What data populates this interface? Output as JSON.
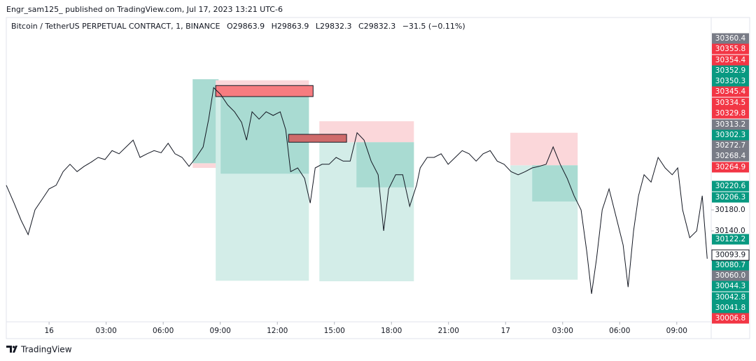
{
  "header": "Engr_sam125_ published on TradingView.com, Jul 17, 2023 13:21 UTC-6",
  "footer": "TradingView",
  "chart_data": {
    "type": "line",
    "title": "Bitcoin / TetherUS PERPETUAL CONTRACT, 1, BINANCE",
    "ohlc": [
      "O29863.9",
      "H29863.9",
      "L29832.3",
      "C29832.3",
      "−31.5 (−0.11%)"
    ],
    "color": "#131722",
    "x": [
      -2.25,
      -1.84,
      -1.47,
      -1.1,
      -0.74,
      -0.37,
      0,
      0.37,
      0.74,
      1.1,
      1.47,
      1.84,
      2.21,
      2.58,
      2.94,
      3.31,
      3.68,
      4.05,
      4.42,
      4.78,
      5.15,
      5.52,
      5.89,
      6.26,
      6.62,
      6.99,
      7.36,
      7.73,
      8.1,
      8.39,
      8.65,
      9.02,
      9.39,
      9.75,
      10.12,
      10.38,
      10.67,
      11.04,
      11.41,
      11.78,
      12.15,
      12.44,
      12.7,
      13.07,
      13.43,
      13.73,
      13.99,
      14.35,
      14.72,
      15.09,
      15.46,
      15.83,
      16.19,
      16.56,
      16.93,
      17.3,
      17.59,
      17.85,
      18.22,
      18.59,
      18.96,
      19.32,
      19.51,
      19.88,
      20.24,
      20.61,
      20.98,
      21.35,
      21.72,
      22.08,
      22.45,
      22.82,
      23.19,
      23.56,
      23.92,
      24.29,
      24.66,
      25.03,
      25.4,
      25.76,
      26.13,
      26.5,
      26.87,
      27.24,
      27.6,
      27.97,
      28.27,
      28.52,
      28.78,
      29.08,
      29.44,
      29.81,
      30.18,
      30.44,
      30.73,
      30.99,
      31.28,
      31.65,
      32.02,
      32.39,
      32.76,
      33.05,
      33.31,
      33.68,
      34.05,
      34.34,
      34.6
    ],
    "values": [
      30227,
      30193,
      30160,
      30133,
      30180,
      30200,
      30220,
      30227,
      30253,
      30267,
      30253,
      30263,
      30271,
      30280,
      30276,
      30293,
      30287,
      30300,
      30313,
      30280,
      30287,
      30293,
      30289,
      30307,
      30287,
      30280,
      30263,
      30280,
      30300,
      30353,
      30413,
      30400,
      30380,
      30367,
      30347,
      30313,
      30367,
      30353,
      30367,
      30360,
      30367,
      30333,
      30253,
      30260,
      30240,
      30193,
      30260,
      30267,
      30267,
      30280,
      30273,
      30273,
      30327,
      30313,
      30273,
      30247,
      30140,
      30220,
      30247,
      30247,
      30187,
      30227,
      30260,
      30280,
      30280,
      30287,
      30267,
      30280,
      30293,
      30287,
      30273,
      30287,
      30293,
      30273,
      30267,
      30253,
      30247,
      30253,
      30260,
      30263,
      30267,
      30300,
      30267,
      30240,
      30207,
      30180,
      30100,
      30020,
      30087,
      30180,
      30220,
      30167,
      30113,
      30033,
      30140,
      30207,
      30247,
      30233,
      30280,
      30260,
      30247,
      30260,
      30180,
      30127,
      30140,
      30207,
      30087
    ],
    "xlim": [
      -2.25,
      34.81
    ],
    "xticks": [
      {
        "value": 0,
        "label": "16"
      },
      {
        "value": 3,
        "label": "03:00"
      },
      {
        "value": 6,
        "label": "06:00"
      },
      {
        "value": 9,
        "label": "09:00"
      },
      {
        "value": 12,
        "label": "12:00"
      },
      {
        "value": 15,
        "label": "15:00"
      },
      {
        "value": 18,
        "label": "18:00"
      },
      {
        "value": 21,
        "label": "21:00"
      },
      {
        "value": 24,
        "label": "17"
      },
      {
        "value": 27,
        "label": "03:00"
      },
      {
        "value": 30,
        "label": "06:00"
      },
      {
        "value": 33,
        "label": "09:00"
      }
    ],
    "ylim": [
      29966.7,
      30546.7
    ],
    "yticks": [
      {
        "value": 30180,
        "label": "30180.0"
      },
      {
        "value": 30140,
        "label": "30140.0"
      }
    ],
    "last_price": {
      "value": 30093.9,
      "label": "30093.9"
    },
    "price_labels": [
      {
        "value": 30360.4,
        "label": "30360.4",
        "color": "#787b86"
      },
      {
        "value": 30355.8,
        "label": "30355.8",
        "color": "#f23645"
      },
      {
        "value": 30354.4,
        "label": "30354.4",
        "color": "#f23645"
      },
      {
        "value": 30352.9,
        "label": "30352.9",
        "color": "#089981"
      },
      {
        "value": 30350.3,
        "label": "30350.3",
        "color": "#089981"
      },
      {
        "value": 30345.4,
        "label": "30345.4",
        "color": "#f23645"
      },
      {
        "value": 30334.5,
        "label": "30334.5",
        "color": "#f23645"
      },
      {
        "value": 30329.8,
        "label": "30329.8",
        "color": "#f23645"
      },
      {
        "value": 30313.2,
        "label": "30313.2",
        "color": "#787b86"
      },
      {
        "value": 30302.3,
        "label": "30302.3",
        "color": "#089981"
      },
      {
        "value": 30272.7,
        "label": "30272.7",
        "color": "#787b86"
      },
      {
        "value": 30268.4,
        "label": "30268.4",
        "color": "#787b86"
      },
      {
        "value": 30264.9,
        "label": "30264.9",
        "color": "#f23645"
      },
      {
        "value": 30220.6,
        "label": "30220.6",
        "color": "#089981"
      },
      {
        "value": 30206.3,
        "label": "30206.3",
        "color": "#089981"
      },
      {
        "value": 30122.2,
        "label": "30122.2",
        "color": "#089981"
      },
      {
        "value": 30080.7,
        "label": "30080.7",
        "color": "#089981"
      },
      {
        "value": 30060.0,
        "label": "30060.0",
        "color": "#787b86"
      },
      {
        "value": 30044.3,
        "label": "30044.3",
        "color": "#089981"
      },
      {
        "value": 30042.8,
        "label": "30042.8",
        "color": "#089981"
      },
      {
        "value": 30041.8,
        "label": "30041.8",
        "color": "#089981"
      },
      {
        "value": 30006.8,
        "label": "30006.8",
        "color": "#f23645"
      }
    ],
    "positions": [
      {
        "start": 7.55,
        "end": 8.91,
        "entry": 30269,
        "stop": 30260,
        "target": 30429,
        "reached_from": 7.55,
        "reached": 30429
      },
      {
        "start": 8.76,
        "end": 13.66,
        "entry": 30397,
        "stop": 30427,
        "target": 30045,
        "reached_from": 9.02,
        "reached": 30249
      },
      {
        "start": 14.21,
        "end": 19.18,
        "entry": 30309,
        "stop": 30349,
        "target": 30044,
        "reached_from": 16.16,
        "reached": 30223
      },
      {
        "start": 24.25,
        "end": 27.79,
        "entry": 30265,
        "stop": 30327,
        "target": 30047,
        "reached_from": 25.4,
        "reached": 30196
      }
    ],
    "rectangles": [
      {
        "start": 8.76,
        "end": 13.88,
        "top": 30417,
        "bottom": 30396,
        "color": "#f77c80"
      },
      {
        "start": 12.59,
        "end": 15.64,
        "top": 30324,
        "bottom": 30309,
        "color": "#cf6b6b"
      }
    ]
  }
}
